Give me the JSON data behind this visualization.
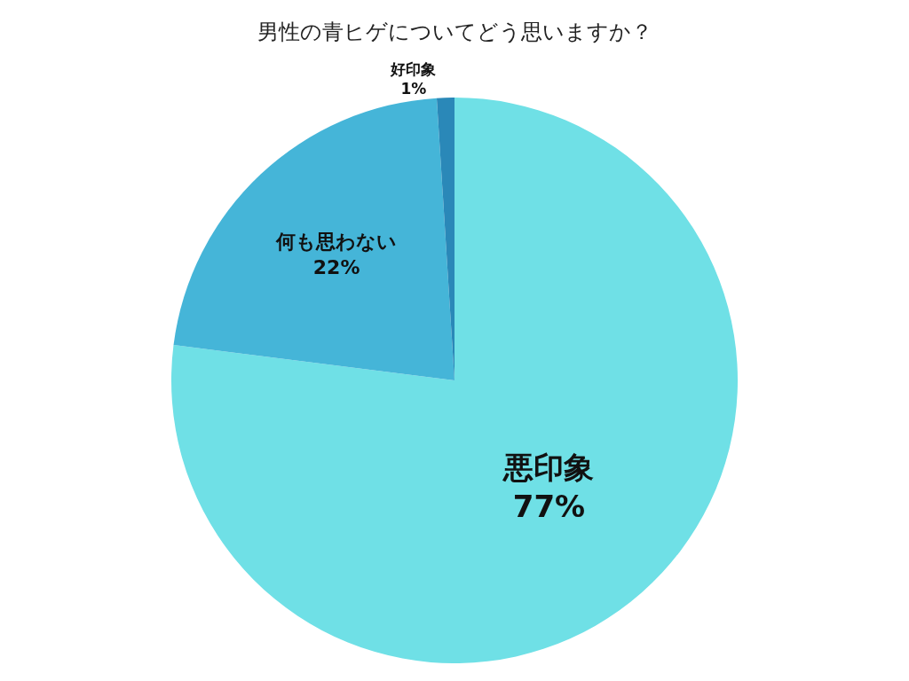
{
  "chart_data": {
    "type": "pie",
    "title": "男性の青ヒゲについてどう思いますか？",
    "categories": [
      "悪印象",
      "何も思わない",
      "好印象"
    ],
    "values": [
      77,
      22,
      1
    ],
    "colors": [
      "#6fe0e6",
      "#45b5d8",
      "#2a88b8"
    ],
    "value_labels": [
      "77%",
      "22%",
      "1%"
    ],
    "legend": false
  }
}
